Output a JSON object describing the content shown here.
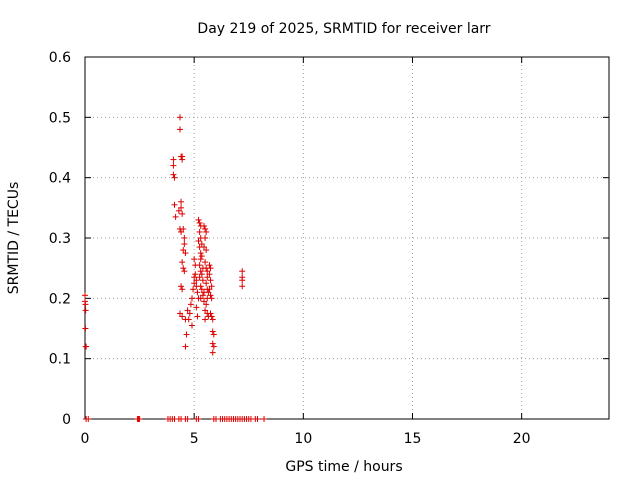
{
  "chart_data": {
    "type": "scatter",
    "title": "Day 219 of 2025, SRMTID for receiver larr",
    "xlabel": "GPS time / hours",
    "ylabel": "SRMTID / TECUs",
    "xlim": [
      0,
      24
    ],
    "ylim": [
      0,
      0.6
    ],
    "xticks": [
      0,
      5,
      10,
      15,
      20
    ],
    "yticks": [
      0,
      0.1,
      0.2,
      0.3,
      0.4,
      0.5,
      0.6
    ],
    "xtick_labels": [
      "0",
      "5",
      "10",
      "15",
      "20"
    ],
    "ytick_labels": [
      "0",
      "0.1",
      "0.2",
      "0.3",
      "0.4",
      "0.5",
      "0.6"
    ],
    "grid": true,
    "marker": "+",
    "color": "#dd0000",
    "series": [
      {
        "name": "SRMTID",
        "points": [
          [
            0.0,
            0.205
          ],
          [
            0.0,
            0.195
          ],
          [
            0.02,
            0.19
          ],
          [
            0.03,
            0.18
          ],
          [
            0.02,
            0.15
          ],
          [
            0.03,
            0.12
          ],
          [
            0.05,
            0.12
          ],
          [
            0.05,
            0.0
          ],
          [
            0.15,
            0.0
          ],
          [
            2.4,
            0.0
          ],
          [
            2.45,
            0.0
          ],
          [
            2.5,
            0.0
          ],
          [
            3.8,
            0.0
          ],
          [
            3.9,
            0.0
          ],
          [
            4.0,
            0.0
          ],
          [
            4.1,
            0.0
          ],
          [
            4.3,
            0.0
          ],
          [
            4.4,
            0.0
          ],
          [
            4.6,
            0.0
          ],
          [
            4.7,
            0.0
          ],
          [
            5.1,
            0.0
          ],
          [
            5.2,
            0.0
          ],
          [
            5.9,
            0.0
          ],
          [
            6.0,
            0.0
          ],
          [
            6.2,
            0.0
          ],
          [
            6.3,
            0.0
          ],
          [
            6.4,
            0.0
          ],
          [
            6.5,
            0.0
          ],
          [
            6.6,
            0.0
          ],
          [
            6.7,
            0.0
          ],
          [
            6.8,
            0.0
          ],
          [
            6.9,
            0.0
          ],
          [
            7.0,
            0.0
          ],
          [
            7.1,
            0.0
          ],
          [
            7.2,
            0.0
          ],
          [
            7.3,
            0.0
          ],
          [
            7.4,
            0.0
          ],
          [
            7.5,
            0.0
          ],
          [
            7.6,
            0.0
          ],
          [
            7.8,
            0.0
          ],
          [
            7.9,
            0.0
          ],
          [
            8.2,
            0.0
          ],
          [
            4.05,
            0.43
          ],
          [
            4.05,
            0.42
          ],
          [
            4.05,
            0.405
          ],
          [
            4.1,
            0.4
          ],
          [
            4.1,
            0.355
          ],
          [
            4.15,
            0.335
          ],
          [
            4.3,
            0.345
          ],
          [
            4.35,
            0.5
          ],
          [
            4.35,
            0.48
          ],
          [
            4.4,
            0.435
          ],
          [
            4.45,
            0.435
          ],
          [
            4.45,
            0.43
          ],
          [
            4.4,
            0.36
          ],
          [
            4.4,
            0.35
          ],
          [
            4.45,
            0.34
          ],
          [
            4.35,
            0.315
          ],
          [
            4.4,
            0.31
          ],
          [
            4.5,
            0.315
          ],
          [
            4.55,
            0.3
          ],
          [
            4.55,
            0.29
          ],
          [
            4.5,
            0.28
          ],
          [
            4.6,
            0.275
          ],
          [
            4.45,
            0.26
          ],
          [
            4.5,
            0.25
          ],
          [
            4.55,
            0.245
          ],
          [
            4.4,
            0.22
          ],
          [
            4.45,
            0.215
          ],
          [
            4.35,
            0.175
          ],
          [
            4.45,
            0.17
          ],
          [
            4.6,
            0.165
          ],
          [
            4.7,
            0.18
          ],
          [
            4.8,
            0.175
          ],
          [
            4.75,
            0.165
          ],
          [
            4.9,
            0.155
          ],
          [
            4.65,
            0.14
          ],
          [
            4.6,
            0.12
          ],
          [
            4.85,
            0.19
          ],
          [
            4.9,
            0.2
          ],
          [
            4.95,
            0.215
          ],
          [
            5.0,
            0.225
          ],
          [
            5.0,
            0.235
          ],
          [
            5.05,
            0.24
          ],
          [
            5.05,
            0.255
          ],
          [
            5.0,
            0.265
          ],
          [
            5.1,
            0.23
          ],
          [
            5.1,
            0.22
          ],
          [
            5.15,
            0.21
          ],
          [
            5.1,
            0.185
          ],
          [
            5.2,
            0.2
          ],
          [
            5.15,
            0.17
          ],
          [
            5.2,
            0.33
          ],
          [
            5.25,
            0.325
          ],
          [
            5.3,
            0.32
          ],
          [
            5.25,
            0.31
          ],
          [
            5.3,
            0.3
          ],
          [
            5.2,
            0.295
          ],
          [
            5.25,
            0.285
          ],
          [
            5.35,
            0.29
          ],
          [
            5.3,
            0.275
          ],
          [
            5.35,
            0.27
          ],
          [
            5.3,
            0.265
          ],
          [
            5.25,
            0.255
          ],
          [
            5.4,
            0.25
          ],
          [
            5.3,
            0.245
          ],
          [
            5.35,
            0.24
          ],
          [
            5.25,
            0.235
          ],
          [
            5.4,
            0.23
          ],
          [
            5.3,
            0.22
          ],
          [
            5.35,
            0.215
          ],
          [
            5.45,
            0.21
          ],
          [
            5.4,
            0.205
          ],
          [
            5.3,
            0.2
          ],
          [
            5.45,
            0.195
          ],
          [
            5.5,
            0.18
          ],
          [
            5.45,
            0.32
          ],
          [
            5.5,
            0.315
          ],
          [
            5.55,
            0.31
          ],
          [
            5.5,
            0.3
          ],
          [
            5.45,
            0.285
          ],
          [
            5.55,
            0.28
          ],
          [
            5.5,
            0.26
          ],
          [
            5.55,
            0.25
          ],
          [
            5.6,
            0.245
          ],
          [
            5.6,
            0.235
          ],
          [
            5.55,
            0.225
          ],
          [
            5.6,
            0.215
          ],
          [
            5.65,
            0.21
          ],
          [
            5.6,
            0.2
          ],
          [
            5.55,
            0.19
          ],
          [
            5.6,
            0.175
          ],
          [
            5.65,
            0.17
          ],
          [
            5.5,
            0.165
          ],
          [
            5.7,
            0.255
          ],
          [
            5.75,
            0.25
          ],
          [
            5.7,
            0.24
          ],
          [
            5.75,
            0.23
          ],
          [
            5.8,
            0.22
          ],
          [
            5.7,
            0.215
          ],
          [
            5.75,
            0.205
          ],
          [
            5.8,
            0.2
          ],
          [
            5.75,
            0.175
          ],
          [
            5.8,
            0.17
          ],
          [
            5.85,
            0.165
          ],
          [
            5.85,
            0.145
          ],
          [
            5.9,
            0.14
          ],
          [
            5.85,
            0.125
          ],
          [
            5.9,
            0.12
          ],
          [
            5.85,
            0.11
          ],
          [
            7.2,
            0.245
          ],
          [
            7.2,
            0.235
          ],
          [
            7.2,
            0.23
          ],
          [
            7.2,
            0.22
          ]
        ]
      }
    ]
  }
}
